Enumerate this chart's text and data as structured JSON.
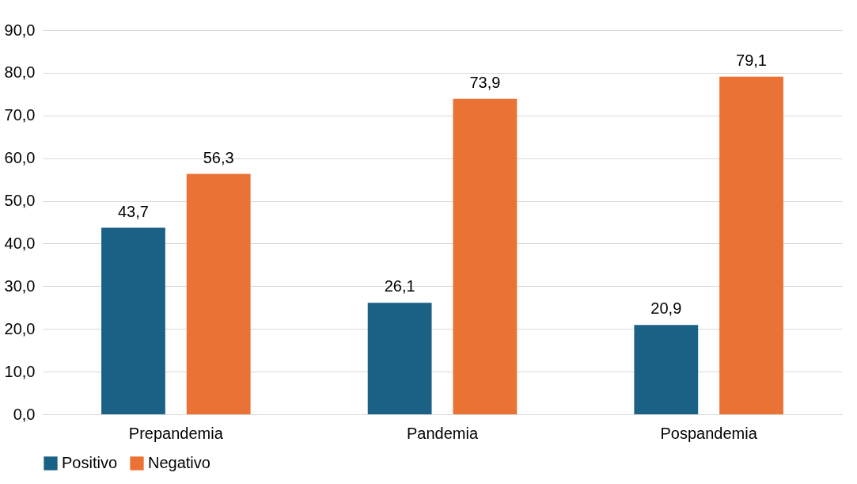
{
  "chart_data": {
    "type": "bar",
    "categories": [
      "Prepandemia",
      "Pandemia",
      "Pospandemia"
    ],
    "series": [
      {
        "name": "Positivo",
        "color": "#1a6185",
        "values": [
          43.7,
          26.1,
          20.9
        ],
        "value_labels": [
          "43,7",
          "26,1",
          "20,9"
        ]
      },
      {
        "name": "Negativo",
        "color": "#eb7235",
        "values": [
          56.3,
          73.9,
          79.1
        ],
        "value_labels": [
          "56,3",
          "73,9",
          "79,1"
        ]
      }
    ],
    "ylim": [
      0,
      90
    ],
    "yticks": [
      {
        "value": 0,
        "label": "0,0"
      },
      {
        "value": 10,
        "label": "10,0"
      },
      {
        "value": 20,
        "label": "20,0"
      },
      {
        "value": 30,
        "label": "30,0"
      },
      {
        "value": 40,
        "label": "40,0"
      },
      {
        "value": 50,
        "label": "50,0"
      },
      {
        "value": 60,
        "label": "60,0"
      },
      {
        "value": 70,
        "label": "70,0"
      },
      {
        "value": 80,
        "label": "80,0"
      },
      {
        "value": 90,
        "label": "90,0"
      }
    ],
    "grid": "y",
    "legend": "bottom"
  }
}
